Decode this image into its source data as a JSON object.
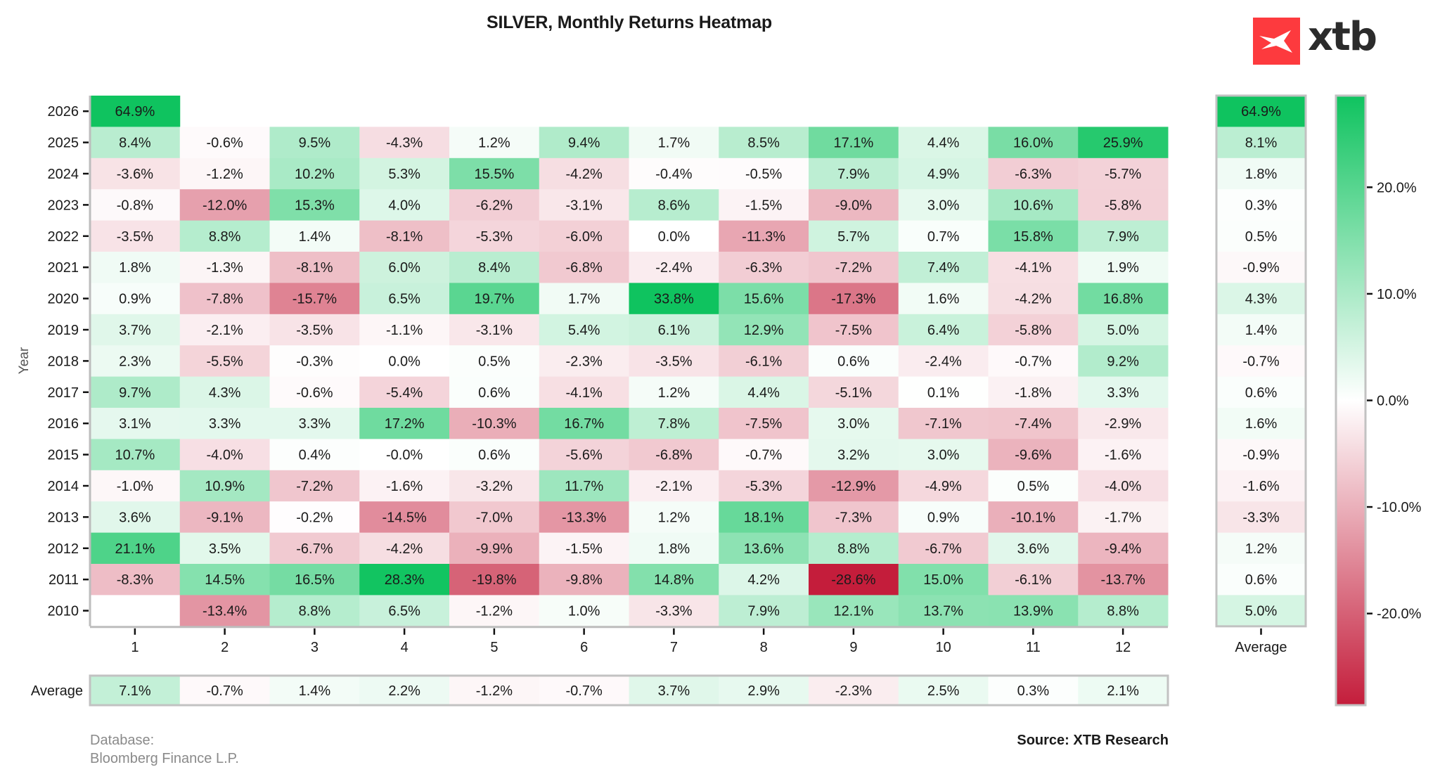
{
  "chart_data": {
    "type": "heatmap",
    "title": "SILVER, Monthly Returns Heatmap",
    "xlabel": "",
    "ylabel": "Year",
    "x_ticks": [
      "1",
      "2",
      "3",
      "4",
      "5",
      "6",
      "7",
      "8",
      "9",
      "10",
      "11",
      "12"
    ],
    "years": [
      "2026",
      "2025",
      "2024",
      "2023",
      "2022",
      "2021",
      "2020",
      "2019",
      "2018",
      "2017",
      "2016",
      "2015",
      "2014",
      "2013",
      "2012",
      "2011",
      "2010"
    ],
    "values": [
      [
        64.9,
        null,
        null,
        null,
        null,
        null,
        null,
        null,
        null,
        null,
        null,
        null
      ],
      [
        8.4,
        -0.6,
        9.5,
        -4.3,
        1.2,
        9.4,
        1.7,
        8.5,
        17.1,
        4.4,
        16.0,
        25.9
      ],
      [
        -3.6,
        -1.2,
        10.2,
        5.3,
        15.5,
        -4.2,
        -0.4,
        -0.5,
        7.9,
        4.9,
        -6.3,
        -5.7
      ],
      [
        -0.8,
        -12.0,
        15.3,
        4.0,
        -6.2,
        -3.1,
        8.6,
        -1.5,
        -9.0,
        3.0,
        10.6,
        -5.8
      ],
      [
        -3.5,
        8.8,
        1.4,
        -8.1,
        -5.3,
        -6.0,
        0.0,
        -11.3,
        5.7,
        0.7,
        15.8,
        7.9
      ],
      [
        1.8,
        -1.3,
        -8.1,
        6.0,
        8.4,
        -6.8,
        -2.4,
        -6.3,
        -7.2,
        7.4,
        -4.1,
        1.9
      ],
      [
        0.9,
        -7.8,
        -15.7,
        6.5,
        19.7,
        1.7,
        33.8,
        15.6,
        -17.3,
        1.6,
        -4.2,
        16.8
      ],
      [
        3.7,
        -2.1,
        -3.5,
        -1.1,
        -3.1,
        5.4,
        6.1,
        12.9,
        -7.5,
        6.4,
        -5.8,
        5.0
      ],
      [
        2.3,
        -5.5,
        -0.3,
        0.0,
        0.5,
        -2.3,
        -3.5,
        -6.1,
        0.6,
        -2.4,
        -0.7,
        9.2
      ],
      [
        9.7,
        4.3,
        -0.6,
        -5.4,
        0.6,
        -4.1,
        1.2,
        4.4,
        -5.1,
        0.1,
        -1.8,
        3.3
      ],
      [
        3.1,
        3.3,
        3.3,
        17.2,
        -10.3,
        16.7,
        7.8,
        -7.5,
        3.0,
        -7.1,
        -7.4,
        -2.9
      ],
      [
        10.7,
        -4.0,
        0.4,
        -0.0,
        0.6,
        -5.6,
        -6.8,
        -0.7,
        3.2,
        3.0,
        -9.6,
        -1.6
      ],
      [
        -1.0,
        10.9,
        -7.2,
        -1.6,
        -3.2,
        11.7,
        -2.1,
        -5.3,
        -12.9,
        -4.9,
        0.5,
        -4.0
      ],
      [
        3.6,
        -9.1,
        -0.2,
        -14.5,
        -7.0,
        -13.3,
        1.2,
        18.1,
        -7.3,
        0.9,
        -10.1,
        -1.7
      ],
      [
        21.1,
        3.5,
        -6.7,
        -4.2,
        -9.9,
        -1.5,
        1.8,
        13.6,
        8.8,
        -6.7,
        3.6,
        -9.4
      ],
      [
        -8.3,
        14.5,
        16.5,
        28.3,
        -19.8,
        -9.8,
        14.8,
        4.2,
        -28.6,
        15.0,
        -6.1,
        -13.7
      ],
      [
        null,
        -13.4,
        8.8,
        6.5,
        -1.2,
        1.0,
        -3.3,
        7.9,
        12.1,
        13.7,
        13.9,
        8.8
      ]
    ],
    "value_labels": [
      [
        "64.9%",
        "",
        "",
        "",
        "",
        "",
        "",
        "",
        "",
        "",
        "",
        ""
      ],
      [
        "8.4%",
        "-0.6%",
        "9.5%",
        "-4.3%",
        "1.2%",
        "9.4%",
        "1.7%",
        "8.5%",
        "17.1%",
        "4.4%",
        "16.0%",
        "25.9%"
      ],
      [
        "-3.6%",
        "-1.2%",
        "10.2%",
        "5.3%",
        "15.5%",
        "-4.2%",
        "-0.4%",
        "-0.5%",
        "7.9%",
        "4.9%",
        "-6.3%",
        "-5.7%"
      ],
      [
        "-0.8%",
        "-12.0%",
        "15.3%",
        "4.0%",
        "-6.2%",
        "-3.1%",
        "8.6%",
        "-1.5%",
        "-9.0%",
        "3.0%",
        "10.6%",
        "-5.8%"
      ],
      [
        "-3.5%",
        "8.8%",
        "1.4%",
        "-8.1%",
        "-5.3%",
        "-6.0%",
        "0.0%",
        "-11.3%",
        "5.7%",
        "0.7%",
        "15.8%",
        "7.9%"
      ],
      [
        "1.8%",
        "-1.3%",
        "-8.1%",
        "6.0%",
        "8.4%",
        "-6.8%",
        "-2.4%",
        "-6.3%",
        "-7.2%",
        "7.4%",
        "-4.1%",
        "1.9%"
      ],
      [
        "0.9%",
        "-7.8%",
        "-15.7%",
        "6.5%",
        "19.7%",
        "1.7%",
        "33.8%",
        "15.6%",
        "-17.3%",
        "1.6%",
        "-4.2%",
        "16.8%"
      ],
      [
        "3.7%",
        "-2.1%",
        "-3.5%",
        "-1.1%",
        "-3.1%",
        "5.4%",
        "6.1%",
        "12.9%",
        "-7.5%",
        "6.4%",
        "-5.8%",
        "5.0%"
      ],
      [
        "2.3%",
        "-5.5%",
        "-0.3%",
        "0.0%",
        "0.5%",
        "-2.3%",
        "-3.5%",
        "-6.1%",
        "0.6%",
        "-2.4%",
        "-0.7%",
        "9.2%"
      ],
      [
        "9.7%",
        "4.3%",
        "-0.6%",
        "-5.4%",
        "0.6%",
        "-4.1%",
        "1.2%",
        "4.4%",
        "-5.1%",
        "0.1%",
        "-1.8%",
        "3.3%"
      ],
      [
        "3.1%",
        "3.3%",
        "3.3%",
        "17.2%",
        "-10.3%",
        "16.7%",
        "7.8%",
        "-7.5%",
        "3.0%",
        "-7.1%",
        "-7.4%",
        "-2.9%"
      ],
      [
        "10.7%",
        "-4.0%",
        "0.4%",
        "-0.0%",
        "0.6%",
        "-5.6%",
        "-6.8%",
        "-0.7%",
        "3.2%",
        "3.0%",
        "-9.6%",
        "-1.6%"
      ],
      [
        "-1.0%",
        "10.9%",
        "-7.2%",
        "-1.6%",
        "-3.2%",
        "11.7%",
        "-2.1%",
        "-5.3%",
        "-12.9%",
        "-4.9%",
        "0.5%",
        "-4.0%"
      ],
      [
        "3.6%",
        "-9.1%",
        "-0.2%",
        "-14.5%",
        "-7.0%",
        "-13.3%",
        "1.2%",
        "18.1%",
        "-7.3%",
        "0.9%",
        "-10.1%",
        "-1.7%"
      ],
      [
        "21.1%",
        "3.5%",
        "-6.7%",
        "-4.2%",
        "-9.9%",
        "-1.5%",
        "1.8%",
        "13.6%",
        "8.8%",
        "-6.7%",
        "3.6%",
        "-9.4%"
      ],
      [
        "-8.3%",
        "14.5%",
        "16.5%",
        "28.3%",
        "-19.8%",
        "-9.8%",
        "14.8%",
        "4.2%",
        "-28.6%",
        "15.0%",
        "-6.1%",
        "-13.7%"
      ],
      [
        "",
        "-13.4%",
        "8.8%",
        "6.5%",
        "-1.2%",
        "1.0%",
        "-3.3%",
        "7.9%",
        "12.1%",
        "13.7%",
        "13.9%",
        "8.8%"
      ]
    ],
    "year_average": {
      "label": "Average",
      "values": [
        64.9,
        8.1,
        1.8,
        0.3,
        0.5,
        -0.9,
        4.3,
        1.4,
        -0.7,
        0.6,
        1.6,
        -0.9,
        -1.6,
        -3.3,
        1.2,
        0.6,
        5.0
      ],
      "labels": [
        "64.9%",
        "8.1%",
        "1.8%",
        "0.3%",
        "0.5%",
        "-0.9%",
        "4.3%",
        "1.4%",
        "-0.7%",
        "0.6%",
        "1.6%",
        "-0.9%",
        "-1.6%",
        "-3.3%",
        "1.2%",
        "0.6%",
        "5.0%"
      ]
    },
    "month_average": {
      "label": "Average",
      "values": [
        7.1,
        -0.7,
        1.4,
        2.2,
        -1.2,
        -0.7,
        3.7,
        2.9,
        -2.3,
        2.5,
        0.3,
        2.1
      ],
      "labels": [
        "7.1%",
        "-0.7%",
        "1.4%",
        "2.2%",
        "-1.2%",
        "-0.7%",
        "3.7%",
        "2.9%",
        "-2.3%",
        "2.5%",
        "0.3%",
        "2.1%"
      ]
    },
    "colorbar": {
      "range": [
        -28.6,
        28.6
      ],
      "ticks": [
        20,
        10,
        0,
        -10,
        -20
      ],
      "tick_labels": [
        "20.0%",
        "10.0%",
        "0.0%",
        "-10.0%",
        "-20.0%"
      ],
      "low_color": "#c41d3b",
      "mid_color": "#ffffff",
      "high_color": "#0fc35f",
      "placement": "right"
    },
    "grid": false
  },
  "branding": {
    "logo_text": "xtb",
    "logo_color": "#fd3a3e"
  },
  "footer": {
    "database_line1": "Database:",
    "database_line2": "Bloomberg Finance L.P.",
    "source": "Source: XTB Research"
  }
}
